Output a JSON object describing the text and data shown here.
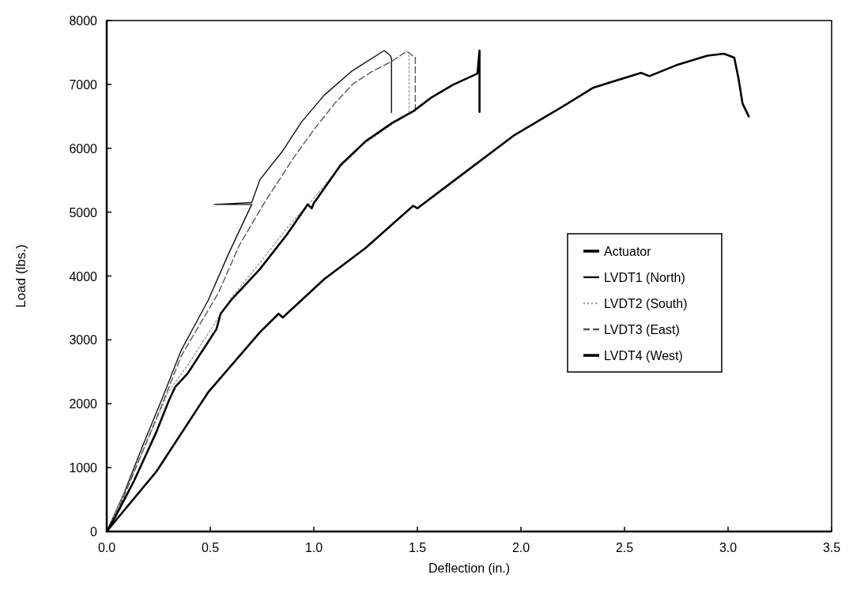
{
  "chart_data": {
    "type": "line",
    "xlabel": "Deflection (in.)",
    "ylabel": "Load (lbs.)",
    "xlim": [
      0,
      3.5
    ],
    "ylim": [
      0,
      8000
    ],
    "xticks": [
      {
        "value": 0,
        "label": "0.0"
      },
      {
        "value": 0.5,
        "label": "0.5"
      },
      {
        "value": 1,
        "label": "1.0"
      },
      {
        "value": 1.5,
        "label": "1.5"
      },
      {
        "value": 2,
        "label": "2.0"
      },
      {
        "value": 2.5,
        "label": "2.5"
      },
      {
        "value": 3,
        "label": "3.0"
      },
      {
        "value": 3.5,
        "label": "3.5"
      }
    ],
    "yticks": [
      0,
      1000,
      2000,
      3000,
      4000,
      5000,
      6000,
      7000,
      8000
    ],
    "grid": false,
    "legend": "right",
    "marker": "none",
    "series": [
      {
        "name": "Actuator",
        "color": "#000000",
        "line_style": "solid",
        "x": [
          0,
          0.02,
          0.24,
          0.49,
          0.74,
          0.83,
          0.85,
          0.94,
          1.02,
          1.05,
          1.25,
          1.48,
          1.5,
          1.7,
          1.97,
          2.2,
          2.35,
          2.5,
          2.58,
          2.62,
          2.75,
          2.9,
          2.98,
          3.03,
          3.05,
          3.07,
          3.1
        ],
        "values": [
          0,
          80,
          940,
          2180,
          3120,
          3410,
          3350,
          3620,
          3860,
          3950,
          4440,
          5100,
          5060,
          5550,
          6210,
          6650,
          6950,
          7100,
          7180,
          7130,
          7300,
          7450,
          7480,
          7420,
          7100,
          6700,
          6500
        ]
      },
      {
        "name": "LVDT1 (North)",
        "color": "#111111",
        "line_style": "solid",
        "x": [
          0,
          0.08,
          0.17,
          0.27,
          0.36,
          0.49,
          0.59,
          0.7,
          0.52,
          0.7,
          0.74,
          0.85,
          0.94,
          1.05,
          1.18,
          1.34,
          1.37,
          1.375,
          1.375
        ],
        "values": [
          0,
          570,
          1310,
          2100,
          2840,
          3620,
          4360,
          5120,
          5120,
          5150,
          5510,
          5960,
          6410,
          6830,
          7200,
          7530,
          7450,
          7400,
          6560
        ]
      },
      {
        "name": "LVDT2 (South)",
        "color": "#9a9a9a",
        "line_style": "dotted",
        "x": [
          0,
          0.1,
          0.2,
          0.3,
          0.39,
          0.53,
          0.6,
          0.75,
          0.87,
          1.0,
          1.13,
          1.25,
          1.38,
          1.46,
          1.46,
          1.45
        ],
        "values": [
          0,
          700,
          1450,
          2200,
          2600,
          3300,
          3650,
          4250,
          4750,
          5220,
          5720,
          6090,
          6380,
          6540,
          7470,
          7520
        ]
      },
      {
        "name": "LVDT3 (East)",
        "color": "#555555",
        "line_style": "dashed",
        "x": [
          0,
          0.06,
          0.16,
          0.26,
          0.36,
          0.54,
          0.64,
          0.76,
          0.9,
          1.0,
          1.1,
          1.19,
          1.28,
          1.37,
          1.45,
          1.48,
          1.49,
          1.49
        ],
        "values": [
          0,
          370,
          1150,
          1930,
          2750,
          3740,
          4480,
          5140,
          5840,
          6290,
          6700,
          7010,
          7200,
          7350,
          7520,
          7440,
          7430,
          6570
        ]
      },
      {
        "name": "LVDT4 (West)",
        "color": "#000000",
        "line_style": "solid",
        "x": [
          0,
          0.03,
          0.13,
          0.24,
          0.3,
          0.33,
          0.39,
          0.53,
          0.55,
          0.6,
          0.74,
          0.87,
          0.97,
          0.99,
          1.0,
          1.13,
          1.25,
          1.38,
          1.48,
          1.57,
          1.67,
          1.79,
          1.8,
          1.8
        ],
        "values": [
          0,
          160,
          780,
          1560,
          2050,
          2260,
          2470,
          3170,
          3410,
          3620,
          4110,
          4650,
          5120,
          5060,
          5140,
          5740,
          6110,
          6400,
          6580,
          6800,
          6990,
          7170,
          7530,
          6570
        ]
      }
    ]
  }
}
